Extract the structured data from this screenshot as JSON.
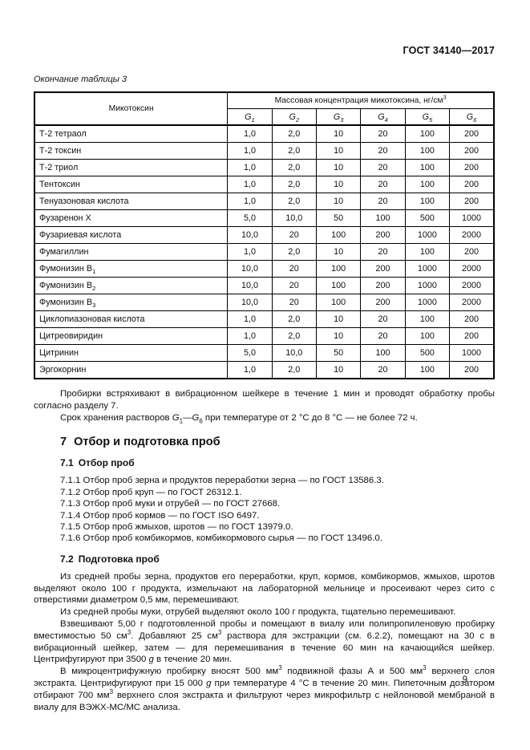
{
  "page": {
    "header_right": "ГОСТ 34140—2017",
    "table_caption": "Окончание таблицы 3",
    "page_number": "9"
  },
  "table": {
    "col_mycotoxin": "Микотоксин",
    "col_concentration": "Массовая концентрация микотоксина, нг/см^3^",
    "g_columns": [
      "G~1~",
      "G~2~",
      "G~3~",
      "G~4~",
      "G~5~",
      "G~6~"
    ],
    "rows": [
      {
        "name": "Т-2 тетраол",
        "values": [
          "1,0",
          "2,0",
          "10",
          "20",
          "100",
          "200"
        ]
      },
      {
        "name": "Т-2 токсин",
        "values": [
          "1,0",
          "2,0",
          "10",
          "20",
          "100",
          "200"
        ]
      },
      {
        "name": "Т-2 триол",
        "values": [
          "1,0",
          "2,0",
          "10",
          "20",
          "100",
          "200"
        ]
      },
      {
        "name": "Тентоксин",
        "values": [
          "1,0",
          "2,0",
          "10",
          "20",
          "100",
          "200"
        ]
      },
      {
        "name": "Тенуазоновая кислота",
        "values": [
          "1,0",
          "2,0",
          "10",
          "20",
          "100",
          "200"
        ]
      },
      {
        "name": "Фузаренон X",
        "values": [
          "5,0",
          "10,0",
          "50",
          "100",
          "500",
          "1000"
        ]
      },
      {
        "name": "Фузариевая кислота",
        "values": [
          "10,0",
          "20",
          "100",
          "200",
          "1000",
          "2000"
        ]
      },
      {
        "name": "Фумагиллин",
        "values": [
          "1,0",
          "2,0",
          "10",
          "20",
          "100",
          "200"
        ]
      },
      {
        "name": "Фумонизин В~1~",
        "values": [
          "10,0",
          "20",
          "100",
          "200",
          "1000",
          "2000"
        ]
      },
      {
        "name": "Фумонизин В~2~",
        "values": [
          "10,0",
          "20",
          "100",
          "200",
          "1000",
          "2000"
        ]
      },
      {
        "name": "Фумонизин В~3~",
        "values": [
          "10,0",
          "20",
          "100",
          "200",
          "1000",
          "2000"
        ]
      },
      {
        "name": "Циклопиазоновая кислота",
        "values": [
          "1,0",
          "2,0",
          "10",
          "20",
          "100",
          "200"
        ]
      },
      {
        "name": "Цитреовиридин",
        "values": [
          "1,0",
          "2,0",
          "10",
          "20",
          "100",
          "200"
        ]
      },
      {
        "name": "Цитринин",
        "values": [
          "5,0",
          "10,0",
          "50",
          "100",
          "500",
          "1000"
        ]
      },
      {
        "name": "Эргокорнин",
        "values": [
          "1,0",
          "2,0",
          "10",
          "20",
          "100",
          "200"
        ]
      }
    ]
  },
  "intro": {
    "par1": "Пробирки встряхивают в вибрационном шейкере в течение 1 мин и проводят обработку пробы согласно разделу 7.",
    "par2": "Срок хранения растворов *G*~1~—*G*~6~ при температуре от 2 °С до 8 °С — не более 72 ч."
  },
  "section7": {
    "number": "7",
    "title": "Отбор и подготовка проб",
    "s71": {
      "number": "7.1",
      "title": "Отбор проб",
      "items": [
        "7.1.1 Отбор проб зерна и продуктов переработки зерна — по ГОСТ 13586.3.",
        "7.1.2 Отбор проб круп — по ГОСТ 26312.1.",
        "7.1.3 Отбор проб муки и отрубей — по ГОСТ 27668.",
        "7.1.4 Отбор проб кормов — по ГОСТ ISO 6497.",
        "7.1.5 Отбор проб жмыхов, шротов — по ГОСТ 13979.0.",
        "7.1.6 Отбор проб комбикормов, комбикормового сырья — по ГОСТ 13496.0."
      ]
    },
    "s72": {
      "number": "7.2",
      "title": "Подготовка проб",
      "paragraphs": [
        "Из средней пробы зерна, продуктов его переработки, круп, кормов, комбикормов, жмыхов, шротов выделяют около 100 г продукта, измельчают на лабораторной мельнице и просеивают через сито с отверстиями диаметром 0,5 мм, перемешивают.",
        "Из средней пробы муки, отрубей выделяют около 100 г продукта, тщательно перемешивают.",
        "Взвешивают 5,00 г подготовленной пробы и помещают в виалу или полипропиленовую пробирку вместимостью 50 см^3^. Добавляют 25 см^3^ раствора для экстракции (см. 6.2.2), помещают на 30 с в вибрационный шейкер, затем — для перемешивания в течение 60 мин на качающийся шейкер. Центрифугируют при 3500 *g* в течение 20 мин.",
        "В микроцентрифужную пробирку вносят 500 мм^3^ подвижной фазы А и 500 мм^3^ верхнего слоя экстракта. Центрифугируют при 15 000 *g* при температуре 4 °С в течение 20 мин. Пипеточным дозатором отбирают 700 мм^3^ верхнего слоя экстракта и фильтруют через микрофильтр с нейлоновой мембраной в виалу для ВЭЖХ-МС/МС анализа."
      ]
    }
  }
}
